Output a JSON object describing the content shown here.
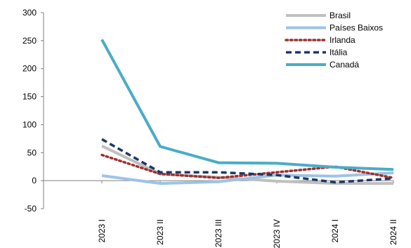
{
  "chart_data": {
    "type": "line",
    "categories": [
      "2023 I",
      "2023 II",
      "2023 III",
      "2023 IV",
      "2024 I",
      "2024 II"
    ],
    "ylim": [
      -50,
      300
    ],
    "yticks": [
      -50,
      0,
      50,
      100,
      150,
      200,
      250,
      300
    ],
    "grid": false,
    "legend_position": "top-right",
    "series": [
      {
        "name": "Brasil",
        "color": "#BFBFBF",
        "style": "solid",
        "values": [
          62,
          12,
          6,
          -1,
          -5,
          -5
        ]
      },
      {
        "name": "Países Baixos",
        "color": "#9DC3E6",
        "style": "solid",
        "values": [
          9,
          -5,
          -2,
          10,
          8,
          14
        ]
      },
      {
        "name": "Irlanda",
        "color": "#A0302E",
        "style": "dotted",
        "values": [
          46,
          12,
          5,
          15,
          25,
          5
        ]
      },
      {
        "name": "Itália",
        "color": "#1F3864",
        "style": "dashed",
        "values": [
          74,
          15,
          15,
          10,
          -3,
          4
        ]
      },
      {
        "name": "Canadá",
        "color": "#4BACC6",
        "style": "solid",
        "values": [
          252,
          61,
          32,
          31,
          24,
          20
        ]
      }
    ]
  }
}
